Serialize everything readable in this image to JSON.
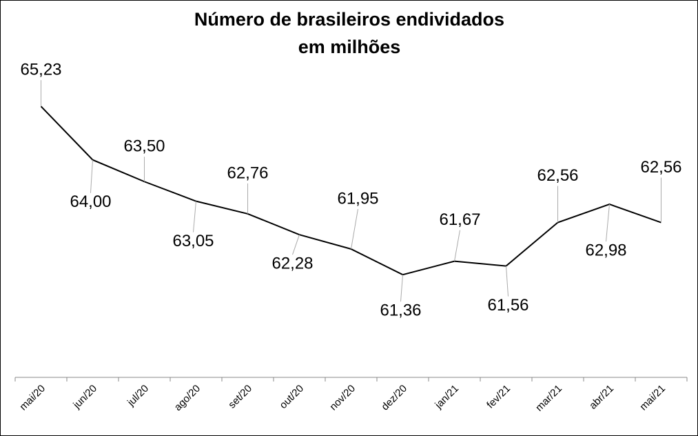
{
  "chart_data": {
    "type": "line",
    "title": [
      "Número de brasileiros endividados",
      "em milhões"
    ],
    "categories": [
      "mai/20",
      "jun/20",
      "jul/20",
      "ago/20",
      "set/20",
      "out/20",
      "nov/20",
      "dez/20",
      "jan/21",
      "fev/21",
      "mar/21",
      "abr/21",
      "mai/21"
    ],
    "series": [
      {
        "name": "Número de brasileiros endividados",
        "color": "#000000",
        "values": [
          65.23,
          64.0,
          63.5,
          63.05,
          62.76,
          62.28,
          61.95,
          61.36,
          61.67,
          61.56,
          62.56,
          62.98,
          62.56
        ],
        "value_labels": [
          "65,23",
          "64,00",
          "63,50",
          "63,05",
          "62,76",
          "62,28",
          "61,95",
          "61,36",
          "61,67",
          "61,56",
          "62,56",
          "62,98",
          "62,56"
        ]
      }
    ],
    "ylim": [
      59,
      66.2
    ]
  }
}
